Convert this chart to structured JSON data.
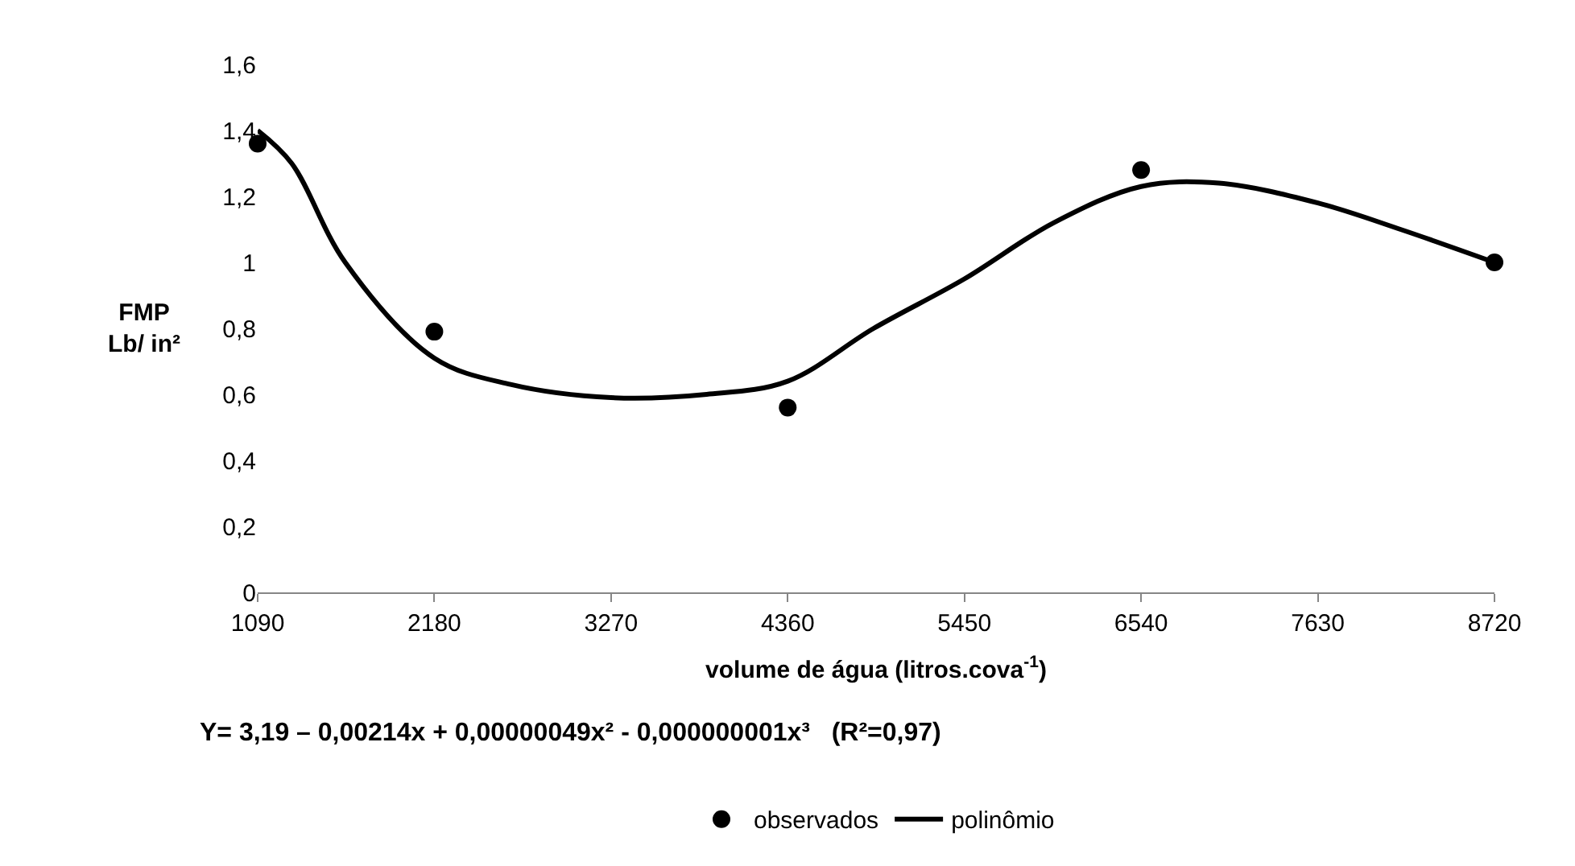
{
  "chart_data": {
    "type": "scatter",
    "xlabel": "volume de água (litros.cova$^{-1}$)",
    "ylabel": "FMP\nLb/ in²",
    "annotations": [
      "Y= 3,19 – 0,00214x + 0,00000049x² - 0,000000001x³   (R²=0,97)"
    ],
    "xlim": [
      1090,
      8720
    ],
    "xticks": [
      1090,
      2180,
      3270,
      4360,
      5450,
      6540,
      7630,
      8720
    ],
    "ylim": [
      0,
      1.6
    ],
    "yticks": [
      0,
      {
        "value": 0.2,
        "label": "0,2"
      },
      {
        "value": 0.4,
        "label": "0,4"
      },
      {
        "value": 0.6,
        "label": "0,6"
      },
      {
        "value": 0.8,
        "label": "0,8"
      },
      1,
      {
        "value": 1.2,
        "label": "1,2"
      },
      {
        "value": 1.4,
        "label": "1,4"
      },
      {
        "value": 1.6,
        "label": "1,6"
      }
    ],
    "legend": "bottom",
    "series": [
      {
        "name": "observados",
        "marker": "circle",
        "color": "#000000",
        "x": [
          1090,
          2180,
          4360,
          6540,
          8720
        ],
        "values": [
          1.36,
          0.79,
          0.56,
          1.28,
          1.0
        ]
      },
      {
        "name": "polinômio",
        "type": "line",
        "marker": "none",
        "line_style": "solid",
        "color": "#000000",
        "x": [
          1090,
          1300,
          1630,
          2180,
          2650,
          3270,
          3860,
          4360,
          4890,
          5450,
          6000,
          6540,
          7020,
          7630,
          8140,
          8720
        ],
        "values": [
          1.4,
          1.3,
          1.0,
          0.71,
          0.63,
          0.59,
          0.6,
          0.64,
          0.8,
          0.95,
          1.12,
          1.23,
          1.24,
          1.18,
          1.1,
          1.0
        ]
      }
    ]
  }
}
